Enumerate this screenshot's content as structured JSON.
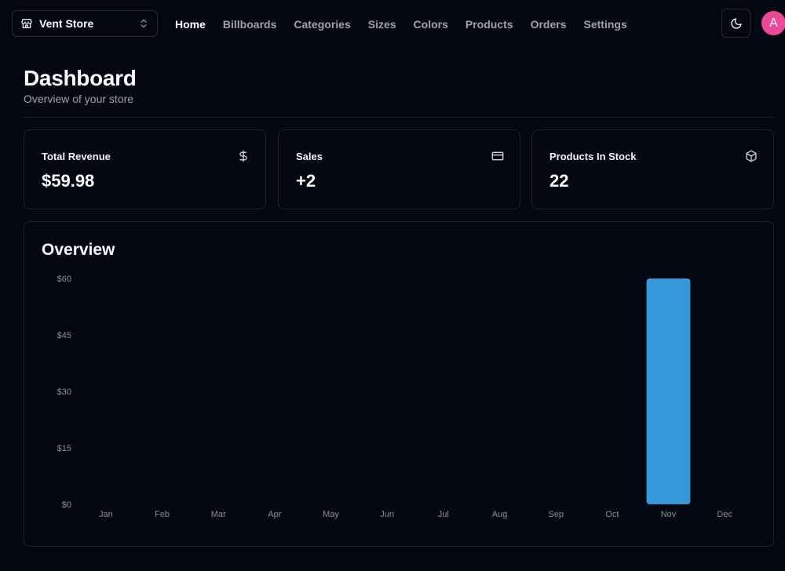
{
  "header": {
    "store_name": "Vent Store",
    "store_icon": "store-icon",
    "nav": [
      {
        "label": "Home",
        "active": true
      },
      {
        "label": "Billboards",
        "active": false
      },
      {
        "label": "Categories",
        "active": false
      },
      {
        "label": "Sizes",
        "active": false
      },
      {
        "label": "Colors",
        "active": false
      },
      {
        "label": "Products",
        "active": false
      },
      {
        "label": "Orders",
        "active": false
      },
      {
        "label": "Settings",
        "active": false
      }
    ],
    "theme_icon": "moon-icon",
    "avatar_initial": "A",
    "avatar_color": "#ec4899"
  },
  "page": {
    "title": "Dashboard",
    "subtitle": "Overview of your store"
  },
  "stats": [
    {
      "label": "Total Revenue",
      "value": "$59.98",
      "icon": "dollar-icon"
    },
    {
      "label": "Sales",
      "value": "+2",
      "icon": "credit-card-icon"
    },
    {
      "label": "Products In Stock",
      "value": "22",
      "icon": "package-icon"
    }
  ],
  "overview": {
    "title": "Overview"
  },
  "chart_data": {
    "type": "bar",
    "categories": [
      "Jan",
      "Feb",
      "Mar",
      "Apr",
      "May",
      "Jun",
      "Jul",
      "Aug",
      "Sep",
      "Oct",
      "Nov",
      "Dec"
    ],
    "values": [
      0,
      0,
      0,
      0,
      0,
      0,
      0,
      0,
      0,
      0,
      59.98,
      0
    ],
    "y_ticks": [
      "$0",
      "$15",
      "$30",
      "$45",
      "$60"
    ],
    "ylim": [
      0,
      60
    ],
    "bar_color": "#3498db",
    "grid": false,
    "title": "",
    "xlabel": "",
    "ylabel": ""
  }
}
